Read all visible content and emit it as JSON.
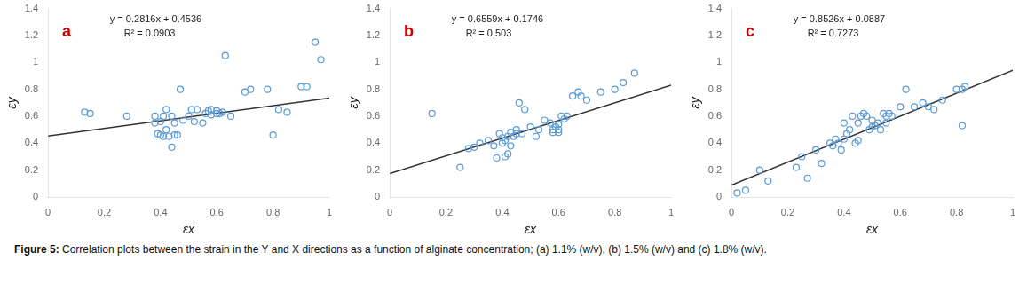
{
  "chart_data": [
    {
      "type": "scatter",
      "xlabel": "εx",
      "ylabel": "εy",
      "annotations": [
        {
          "text": "a",
          "color": "#CC0000"
        },
        {
          "text": "y = 0.2816x + 0.4536"
        },
        {
          "text": "R² = 0.0903"
        }
      ],
      "series": [
        {
          "type": "scatter",
          "color": "#5B9BD5",
          "marker": "circle",
          "x": [
            0.13,
            0.15,
            0.28,
            0.38,
            0.38,
            0.39,
            0.4,
            0.4,
            0.41,
            0.41,
            0.42,
            0.42,
            0.43,
            0.44,
            0.44,
            0.45,
            0.45,
            0.46,
            0.47,
            0.48,
            0.5,
            0.51,
            0.52,
            0.53,
            0.55,
            0.56,
            0.57,
            0.58,
            0.58,
            0.6,
            0.6,
            0.61,
            0.62,
            0.63,
            0.65,
            0.7,
            0.72,
            0.78,
            0.8,
            0.82,
            0.85,
            0.9,
            0.92,
            0.95,
            0.97
          ],
          "values": [
            0.63,
            0.62,
            0.6,
            0.55,
            0.6,
            0.47,
            0.46,
            0.56,
            0.45,
            0.6,
            0.5,
            0.65,
            0.45,
            0.37,
            0.6,
            0.46,
            0.55,
            0.46,
            0.8,
            0.57,
            0.6,
            0.65,
            0.56,
            0.65,
            0.55,
            0.62,
            0.64,
            0.61,
            0.65,
            0.62,
            0.64,
            0.62,
            0.63,
            1.05,
            0.6,
            0.78,
            0.8,
            0.8,
            0.46,
            0.65,
            0.63,
            0.82,
            0.82,
            1.15,
            1.02
          ]
        },
        {
          "type": "line",
          "color": "#333333",
          "line_style": "solid",
          "x": [
            0,
            1
          ],
          "values": [
            0.4536,
            0.7352
          ]
        }
      ],
      "xlim": [
        0,
        1
      ],
      "ylim": [
        0,
        1.4
      ],
      "xticks": [
        0,
        0.2,
        0.4,
        0.6,
        0.8,
        1
      ],
      "yticks": [
        0,
        0.2,
        0.4,
        0.6,
        0.8,
        1,
        1.2,
        1.4
      ],
      "grid": false
    },
    {
      "type": "scatter",
      "xlabel": "εx",
      "ylabel": "εy",
      "annotations": [
        {
          "text": "b",
          "color": "#CC0000"
        },
        {
          "text": "y = 0.6559x + 0.1746"
        },
        {
          "text": "R² = 0.503"
        }
      ],
      "series": [
        {
          "type": "scatter",
          "color": "#5B9BD5",
          "marker": "circle",
          "x": [
            0.15,
            0.25,
            0.28,
            0.3,
            0.32,
            0.35,
            0.37,
            0.38,
            0.39,
            0.4,
            0.4,
            0.41,
            0.41,
            0.42,
            0.42,
            0.43,
            0.43,
            0.44,
            0.45,
            0.45,
            0.46,
            0.47,
            0.48,
            0.5,
            0.52,
            0.53,
            0.55,
            0.57,
            0.58,
            0.58,
            0.59,
            0.6,
            0.6,
            0.6,
            0.61,
            0.62,
            0.63,
            0.65,
            0.67,
            0.68,
            0.7,
            0.75,
            0.8,
            0.83,
            0.87
          ],
          "values": [
            0.62,
            0.22,
            0.36,
            0.37,
            0.4,
            0.42,
            0.38,
            0.29,
            0.47,
            0.4,
            0.44,
            0.3,
            0.42,
            0.45,
            0.32,
            0.38,
            0.48,
            0.45,
            0.47,
            0.5,
            0.7,
            0.47,
            0.65,
            0.52,
            0.45,
            0.5,
            0.57,
            0.55,
            0.48,
            0.5,
            0.52,
            0.48,
            0.5,
            0.54,
            0.6,
            0.58,
            0.6,
            0.75,
            0.78,
            0.75,
            0.72,
            0.78,
            0.8,
            0.85,
            0.92
          ]
        },
        {
          "type": "line",
          "color": "#333333",
          "line_style": "solid",
          "x": [
            0,
            1
          ],
          "values": [
            0.1746,
            0.8305
          ]
        }
      ],
      "xlim": [
        0,
        1
      ],
      "ylim": [
        0,
        1.4
      ],
      "xticks": [
        0,
        0.2,
        0.4,
        0.6,
        0.8,
        1
      ],
      "yticks": [
        0,
        0.2,
        0.4,
        0.6,
        0.8,
        1,
        1.2,
        1.4
      ],
      "grid": false
    },
    {
      "type": "scatter",
      "xlabel": "εx",
      "ylabel": "εy",
      "annotations": [
        {
          "text": "c",
          "color": "#CC0000"
        },
        {
          "text": "y = 0.8526x + 0.0887"
        },
        {
          "text": "R² = 0.7273"
        }
      ],
      "series": [
        {
          "type": "scatter",
          "color": "#5B9BD5",
          "marker": "circle",
          "x": [
            0.02,
            0.05,
            0.1,
            0.13,
            0.23,
            0.25,
            0.27,
            0.3,
            0.32,
            0.35,
            0.36,
            0.37,
            0.38,
            0.39,
            0.4,
            0.4,
            0.41,
            0.42,
            0.43,
            0.44,
            0.45,
            0.45,
            0.46,
            0.47,
            0.48,
            0.49,
            0.5,
            0.5,
            0.51,
            0.52,
            0.53,
            0.54,
            0.55,
            0.55,
            0.56,
            0.57,
            0.6,
            0.62,
            0.65,
            0.68,
            0.7,
            0.72,
            0.75,
            0.8,
            0.82,
            0.82,
            0.83
          ],
          "values": [
            0.03,
            0.05,
            0.2,
            0.12,
            0.22,
            0.3,
            0.14,
            0.35,
            0.25,
            0.4,
            0.38,
            0.43,
            0.4,
            0.35,
            0.43,
            0.55,
            0.47,
            0.5,
            0.6,
            0.4,
            0.42,
            0.55,
            0.6,
            0.62,
            0.6,
            0.5,
            0.52,
            0.57,
            0.53,
            0.55,
            0.5,
            0.62,
            0.55,
            0.6,
            0.62,
            0.6,
            0.67,
            0.8,
            0.67,
            0.7,
            0.67,
            0.65,
            0.72,
            0.8,
            0.53,
            0.8,
            0.82
          ]
        },
        {
          "type": "line",
          "color": "#333333",
          "line_style": "solid",
          "x": [
            0,
            1
          ],
          "values": [
            0.0887,
            0.9413
          ]
        }
      ],
      "xlim": [
        0,
        1
      ],
      "ylim": [
        0,
        1.4
      ],
      "xticks": [
        0,
        0.2,
        0.4,
        0.6,
        0.8,
        1
      ],
      "yticks": [
        0,
        0.2,
        0.4,
        0.6,
        0.8,
        1,
        1.2,
        1.4
      ],
      "grid": false
    }
  ],
  "caption": "Figure 5: Correlation plots between the strain in the Y and X directions as a function of alginate concentration; (a) 1.1% (w/v), (b) 1.5% (w/v) and (c) 1.8% (w/v)."
}
